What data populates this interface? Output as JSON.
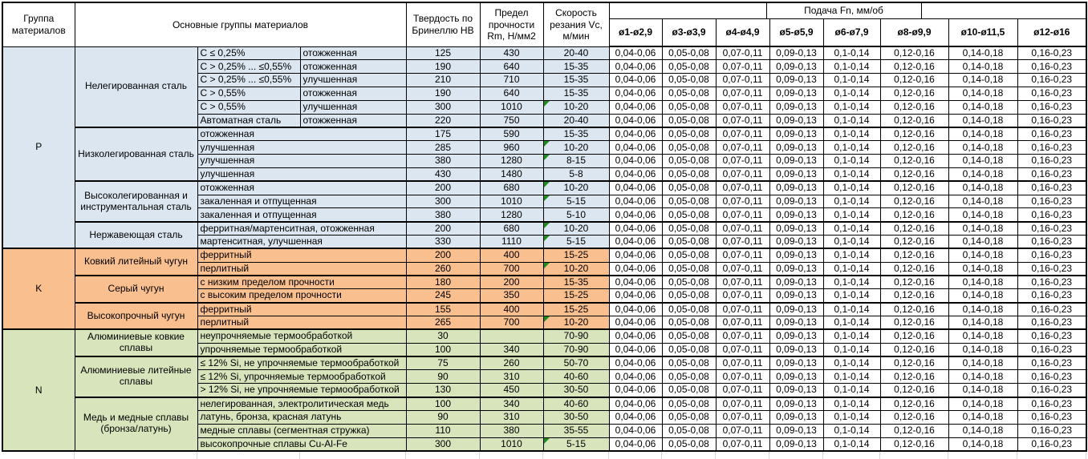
{
  "header": {
    "material_group": "Группа материалов",
    "main_groups": "Основные группы материалов",
    "hardness": "Твердость по Бринеллю HB",
    "strength": "Предел прочности Rm, Н/мм2",
    "speed": "Скорость резания Vc, м/мин",
    "feed_title": "Подача Fn, мм/об",
    "feed_cols": [
      "ø1-ø2,9",
      "ø3-ø3,9",
      "ø4-ø4,9",
      "ø5-ø5,9",
      "ø6-ø7,9",
      "ø8-ø9,9",
      "ø10-ø11,5",
      "ø12-ø16"
    ]
  },
  "feed_values": [
    "0,04-0,06",
    "0,05-0,08",
    "0,07-0,11",
    "0,09-0,13",
    "0,1-0,14",
    "0,12-0,16",
    "0,14-0,18",
    "0,16-0,23"
  ],
  "flag_color": "#1e8b1e",
  "sections": [
    {
      "code": "P",
      "color": "#dce6f1",
      "groups": [
        {
          "name": "Нелегированная сталь",
          "rows": [
            {
              "spec1": "C ≤ 0,25%",
              "spec2": "отожженная",
              "hb": "125",
              "rm": "430",
              "vc": "20-40"
            },
            {
              "spec1": "C > 0,25% ... ≤0,55%",
              "spec2": "отожженная",
              "hb": "190",
              "rm": "640",
              "vc": "15-35"
            },
            {
              "spec1": "C > 0,25% ... ≤0,55%",
              "spec2": "улучшенная",
              "hb": "210",
              "rm": "710",
              "vc": "15-35"
            },
            {
              "spec1": "C > 0,55%",
              "spec2": "отожженная",
              "hb": "190",
              "rm": "640",
              "vc": "15-35"
            },
            {
              "spec1": "C > 0,55%",
              "spec2": "улучшенная",
              "hb": "300",
              "rm": "1010",
              "vc": "10-20",
              "marker": true
            },
            {
              "spec1": "Автоматная сталь",
              "spec2": "отожженная",
              "hb": "220",
              "rm": "750",
              "vc": "20-40"
            }
          ]
        },
        {
          "name": "Низколегированная сталь",
          "rows": [
            {
              "spec": "отожженная",
              "hb": "175",
              "rm": "590",
              "vc": "15-35"
            },
            {
              "spec": "улучшенная",
              "hb": "285",
              "rm": "960",
              "vc": "10-20",
              "marker": true
            },
            {
              "spec": "улучшенная",
              "hb": "380",
              "rm": "1280",
              "vc": "8-15",
              "marker": true
            },
            {
              "spec": "улучшенная",
              "hb": "430",
              "rm": "1480",
              "vc": "5-8"
            }
          ]
        },
        {
          "name": "Высоколегированная и инструментальная сталь",
          "rows": [
            {
              "spec": "отожженная",
              "hb": "200",
              "rm": "680",
              "vc": "10-20",
              "marker": true
            },
            {
              "spec": "закаленная и отпущенная",
              "hb": "300",
              "rm": "1010",
              "vc": "5-15",
              "marker": true
            },
            {
              "spec": "закаленная и отпущенная",
              "hb": "380",
              "rm": "1280",
              "vc": "5-10"
            }
          ]
        },
        {
          "name": "Нержавеющая сталь",
          "rows": [
            {
              "spec": "ферритная/мартенситная, отожженная",
              "hb": "200",
              "rm": "680",
              "vc": "10-20",
              "marker": true
            },
            {
              "spec": "мартенситная, улучшенная",
              "hb": "330",
              "rm": "1110",
              "vc": "5-15",
              "marker": true
            }
          ]
        }
      ]
    },
    {
      "code": "K",
      "color": "#fabf8f",
      "groups": [
        {
          "name": "Ковкий литейный чугун",
          "rows": [
            {
              "spec": "ферритный",
              "hb": "200",
              "rm": "400",
              "vc": "15-25"
            },
            {
              "spec": "перлитный",
              "hb": "260",
              "rm": "700",
              "vc": "10-20",
              "marker": true
            }
          ]
        },
        {
          "name": "Серый чугун",
          "rows": [
            {
              "spec": "с низким пределом прочности",
              "hb": "180",
              "rm": "200",
              "vc": "15-35"
            },
            {
              "spec": "с высоким пределом прочности",
              "hb": "245",
              "rm": "350",
              "vc": "15-25"
            }
          ]
        },
        {
          "name": "Высокопрочный чугун",
          "rows": [
            {
              "spec": "ферритный",
              "hb": "155",
              "rm": "400",
              "vc": "15-25"
            },
            {
              "spec": "перлитный",
              "hb": "265",
              "rm": "700",
              "vc": "10-20",
              "marker": true
            }
          ]
        }
      ]
    },
    {
      "code": "N",
      "color": "#d8e4bc",
      "groups": [
        {
          "name": "Алюминиевые ковкие сплавы",
          "rows": [
            {
              "spec": "неупрочняемые термообработкой",
              "hb": "30",
              "rm": "",
              "vc": "70-90"
            },
            {
              "spec": "упрочняемые термообработкой",
              "hb": "100",
              "rm": "340",
              "vc": "70-90"
            }
          ]
        },
        {
          "name": "Алюминиевые литейные сплавы",
          "rows": [
            {
              "spec": "≤ 12% Si, не упрочняемые термообработкой",
              "hb": "75",
              "rm": "260",
              "vc": "50-70"
            },
            {
              "spec": "≤ 12% Si, упрочняемые термообработкой",
              "hb": "90",
              "rm": "310",
              "vc": "40-60"
            },
            {
              "spec": "> 12% Si, не упрочняемые термообработкой",
              "hb": "130",
              "rm": "450",
              "vc": "30-50"
            }
          ]
        },
        {
          "name": "Медь и медные сплавы (бронза/латунь)",
          "rows": [
            {
              "spec": "нелегированная, электролитическая медь",
              "hb": "100",
              "rm": "340",
              "vc": "40-60"
            },
            {
              "spec": "латунь, бронза, красная латунь",
              "hb": "90",
              "rm": "310",
              "vc": "30-50"
            },
            {
              "spec": "медные сплавы (сегментная стружка)",
              "hb": "110",
              "rm": "380",
              "vc": "35-55"
            },
            {
              "spec": "высокопрочные сплавы Cu-Al-Fe",
              "hb": "300",
              "rm": "1010",
              "vc": "5-15",
              "marker": true
            }
          ]
        }
      ]
    }
  ]
}
